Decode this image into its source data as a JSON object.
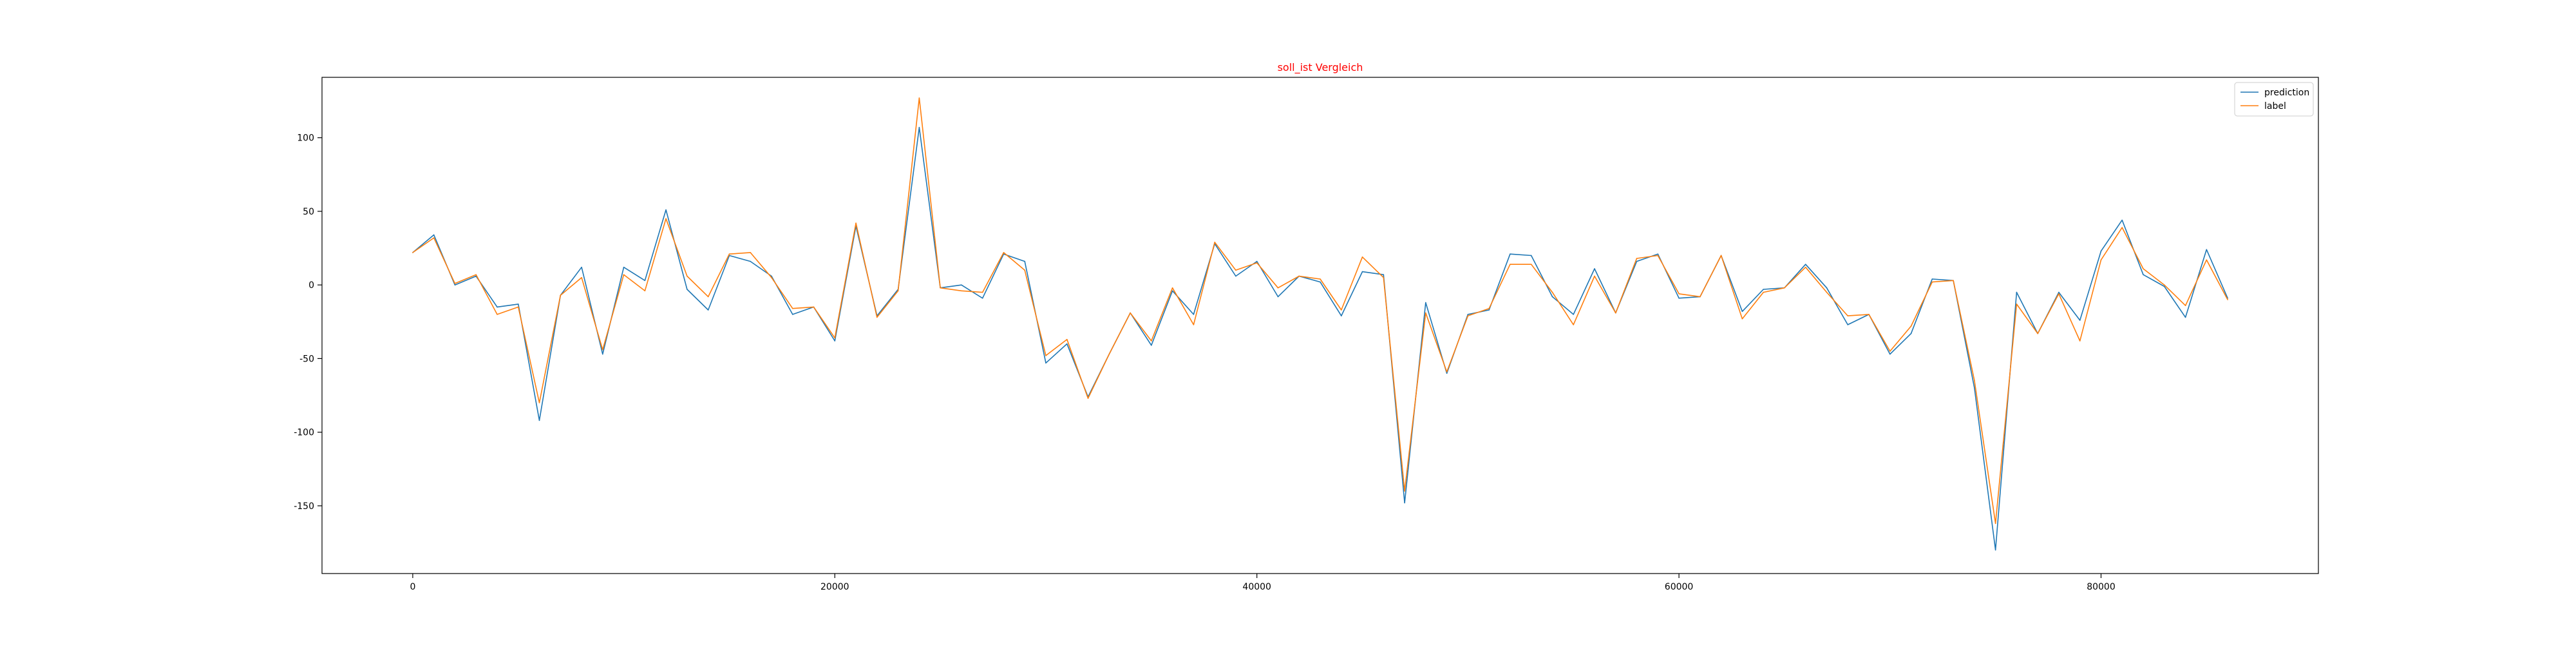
{
  "chart_data": {
    "type": "line",
    "title": "soll_ist Vergleich",
    "title_color": "#ff0000",
    "xlim": [
      -4300,
      90300
    ],
    "ylim": [
      -196,
      141
    ],
    "x_ticks": [
      0,
      20000,
      40000,
      60000,
      80000
    ],
    "y_ticks": [
      -150,
      -100,
      -50,
      0,
      50,
      100
    ],
    "grid": false,
    "legend_position": "top-right",
    "x": [
      0,
      1000,
      2000,
      3000,
      4000,
      5000,
      6000,
      7000,
      8000,
      9000,
      10000,
      11000,
      12000,
      13000,
      14000,
      15000,
      16000,
      17000,
      18000,
      19000,
      20000,
      21000,
      22000,
      23000,
      24000,
      25000,
      26000,
      27000,
      28000,
      29000,
      30000,
      31000,
      32000,
      33000,
      34000,
      35000,
      36000,
      37000,
      38000,
      39000,
      40000,
      41000,
      42000,
      43000,
      44000,
      45000,
      46000,
      47000,
      48000,
      49000,
      50000,
      51000,
      52000,
      53000,
      54000,
      55000,
      56000,
      57000,
      58000,
      59000,
      60000,
      61000,
      62000,
      63000,
      64000,
      65000,
      66000,
      67000,
      68000,
      69000,
      70000,
      71000,
      72000,
      73000,
      74000,
      75000,
      76000,
      77000,
      78000,
      79000,
      80000,
      81000,
      82000,
      83000,
      84000,
      85000,
      86000
    ],
    "series": [
      {
        "name": "prediction",
        "color": "#1f77b4",
        "values": [
          22,
          34,
          0,
          6,
          -15,
          -13,
          -92,
          -7,
          12,
          -47,
          12,
          3,
          51,
          -3,
          -17,
          20,
          16,
          6,
          -20,
          -15,
          -38,
          40,
          -21,
          -3,
          107,
          -2,
          0,
          -9,
          21,
          16,
          -53,
          -40,
          -76,
          -47,
          -19,
          -41,
          -4,
          -20,
          28,
          6,
          16,
          -8,
          6,
          2,
          -21,
          9,
          7,
          -148,
          -12,
          -60,
          -20,
          -17,
          21,
          20,
          -8,
          -20,
          11,
          -19,
          16,
          21,
          -9,
          -8,
          20,
          -18,
          -3,
          -2,
          14,
          -2,
          -27,
          -20,
          -47,
          -33,
          4,
          3,
          -70,
          -180,
          -5,
          -33,
          -5,
          -24,
          23,
          44,
          7,
          -1,
          -22,
          24,
          -9
        ]
      },
      {
        "name": "label",
        "color": "#ff7f0e",
        "values": [
          22,
          32,
          1,
          7,
          -20,
          -15,
          -80,
          -7,
          5,
          -44,
          7,
          -4,
          45,
          6,
          -8,
          21,
          22,
          5,
          -16,
          -15,
          -36,
          42,
          -22,
          -4,
          127,
          -2,
          -4,
          -5,
          22,
          10,
          -48,
          -37,
          -77,
          -47,
          -19,
          -38,
          -2,
          -27,
          29,
          10,
          15,
          -2,
          6,
          4,
          -17,
          19,
          5,
          -140,
          -19,
          -59,
          -21,
          -16,
          14,
          14,
          -5,
          -27,
          6,
          -19,
          18,
          20,
          -6,
          -8,
          20,
          -23,
          -5,
          -2,
          12,
          -5,
          -21,
          -20,
          -45,
          -28,
          2,
          3,
          -65,
          -162,
          -13,
          -33,
          -6,
          -38,
          17,
          39,
          11,
          0,
          -14,
          17,
          -10
        ]
      }
    ]
  }
}
